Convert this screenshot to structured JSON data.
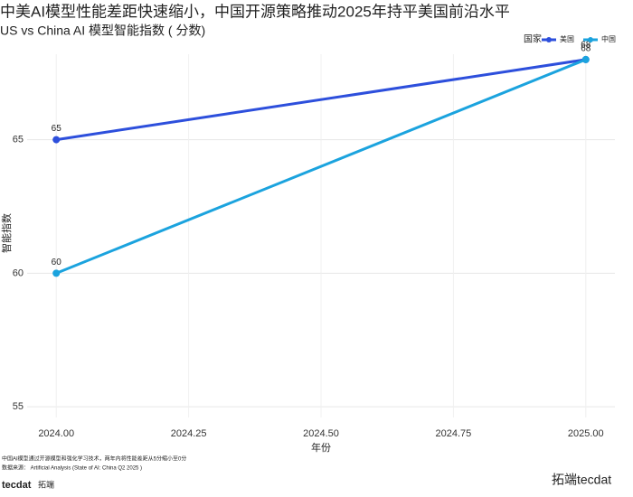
{
  "chart_data": {
    "type": "line",
    "title": "中美AI模型性能差距快速缩小，中国开源策略推动2025年持平美国前沿水平",
    "subtitle": "US vs China AI 模型智能指数 ( 分数)",
    "x_label": "年份",
    "y_label": "智能指数",
    "legend_title": "国家",
    "legend_position": "top-right",
    "x": [
      2024,
      2025
    ],
    "series": [
      {
        "name": "美国",
        "color": "#2d4fdc",
        "values": [
          65,
          68
        ]
      },
      {
        "name": "中国",
        "color": "#1ba3de",
        "values": [
          60,
          68
        ]
      }
    ],
    "xlim": [
      2023.945,
      2025.055
    ],
    "xticks": [
      {
        "value": 2024,
        "label": "2024.00"
      },
      {
        "value": 2024.25,
        "label": "2024.25"
      },
      {
        "value": 2024.5,
        "label": "2024.50"
      },
      {
        "value": 2024.75,
        "label": "2024.75"
      },
      {
        "value": 2025,
        "label": "2025.00"
      }
    ],
    "ylim": [
      54.6,
      68.2
    ],
    "yticks": [
      55,
      60,
      65
    ],
    "grid": true
  },
  "footer": {
    "note": "中国AI模型通过开源模型和强化学习技术，两年内将性能差距从5分缩小至0分",
    "source": "数据来源：  Artificial Analysis      (State of AI: China Q2 2025    )",
    "logo": "tecdat",
    "logo_cn": "拓端",
    "watermark": "拓端tecdat"
  }
}
